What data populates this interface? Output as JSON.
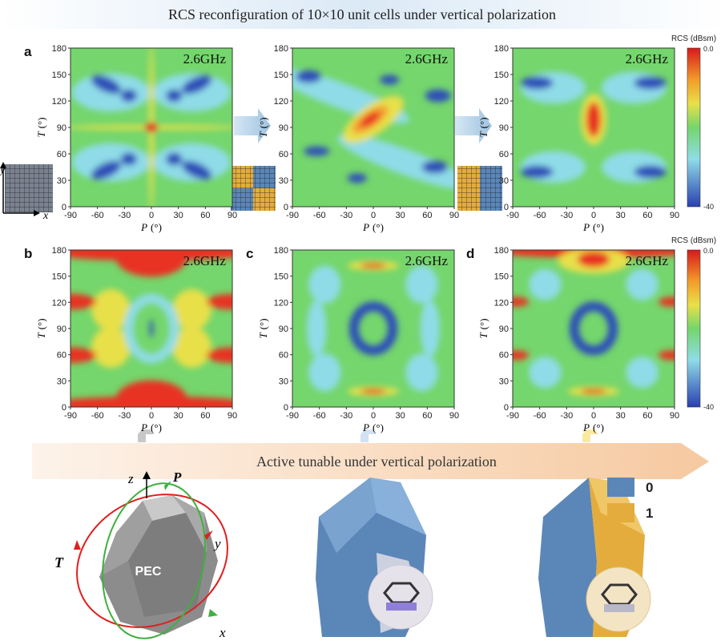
{
  "title": "RCS reconfiguration of 10×10 unit cells under vertical polarization",
  "axes": {
    "x_symbol": "P",
    "y_symbol": "T",
    "unit": "(°)",
    "x_ticks": [
      "-90",
      "-60",
      "-30",
      "0",
      "30",
      "60",
      "90"
    ],
    "y_ticks": [
      "0",
      "30",
      "60",
      "90",
      "120",
      "150",
      "180"
    ]
  },
  "row_a": {
    "letter": "a",
    "panels": [
      {
        "freq": "2.6GHz"
      },
      {
        "freq": "2.6GHz"
      },
      {
        "freq": "2.6GHz"
      }
    ],
    "colorbar": {
      "title": "RCS (dBsm)",
      "max": "0.0",
      "min": "-40"
    }
  },
  "row_b": {
    "panels": [
      {
        "letter": "b",
        "freq": "2.6GHz"
      },
      {
        "letter": "c",
        "freq": "2.6GHz"
      },
      {
        "letter": "d",
        "freq": "2.6GHz"
      }
    ],
    "colorbar": {
      "title": "RCS (dBsm)",
      "max": "0.0",
      "min": "-40"
    }
  },
  "icon_axes": {
    "y": "y",
    "x": "x"
  },
  "banner": "Active tunable under vertical polarization",
  "legend": [
    {
      "label": "0"
    },
    {
      "label": "1"
    }
  ],
  "pec": {
    "label": "PEC",
    "z": "z",
    "P": "P",
    "y": "y",
    "T": "T",
    "x": "x"
  }
}
